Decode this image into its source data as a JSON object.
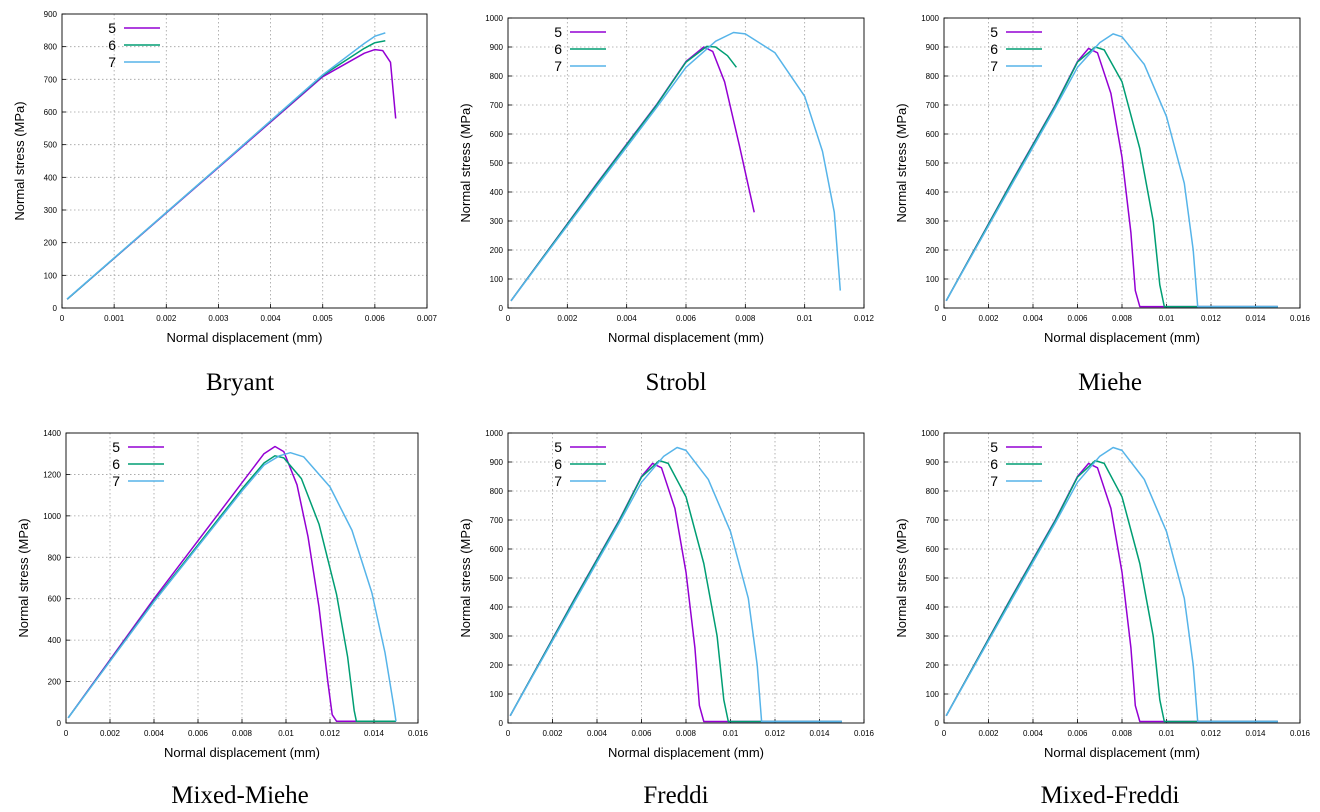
{
  "figure": {
    "legend_position": "top-left",
    "grid": true,
    "series_colors": {
      "5": "#9400D3",
      "6": "#009E73",
      "7": "#56B4E9"
    }
  },
  "chart_data": [
    {
      "type": "line",
      "caption": "Bryant",
      "xlabel": "Normal displacement (mm)",
      "ylabel": "Normal stress (MPa)",
      "xlim": [
        0,
        0.007
      ],
      "ylim": [
        0,
        900
      ],
      "xticks": [
        "0",
        "0.001",
        "0.002",
        "0.003",
        "0.004",
        "0.005",
        "0.006",
        "0.007"
      ],
      "yticks": [
        "0",
        "100",
        "200",
        "300",
        "400",
        "500",
        "600",
        "700",
        "800",
        "900"
      ],
      "series": [
        {
          "name": "5",
          "points": [
            [
              0.0001,
              27
            ],
            [
              0.003,
              430
            ],
            [
              0.005,
              708
            ],
            [
              0.0058,
              780
            ],
            [
              0.006,
              791
            ],
            [
              0.00615,
              788
            ],
            [
              0.0063,
              752
            ],
            [
              0.0064,
              580
            ]
          ]
        },
        {
          "name": "6",
          "points": [
            [
              0.0001,
              27
            ],
            [
              0.003,
              432
            ],
            [
              0.005,
              712
            ],
            [
              0.0058,
              795
            ],
            [
              0.006,
              812
            ],
            [
              0.0062,
              818
            ]
          ]
        },
        {
          "name": "7",
          "points": [
            [
              0.0001,
              28
            ],
            [
              0.003,
              432
            ],
            [
              0.005,
              714
            ],
            [
              0.0058,
              810
            ],
            [
              0.006,
              832
            ],
            [
              0.0062,
              842
            ]
          ]
        }
      ]
    },
    {
      "type": "line",
      "caption": "Strobl",
      "xlabel": "Normal displacement (mm)",
      "ylabel": "Normal stress (MPa)",
      "xlim": [
        0,
        0.012
      ],
      "ylim": [
        0,
        1000
      ],
      "xticks": [
        "0",
        "0.002",
        "0.004",
        "0.006",
        "0.008",
        "0.01",
        "0.012"
      ],
      "yticks": [
        "0",
        "100",
        "200",
        "300",
        "400",
        "500",
        "600",
        "700",
        "800",
        "900",
        "1000"
      ],
      "series": [
        {
          "name": "5",
          "points": [
            [
              0.0001,
              25
            ],
            [
              0.003,
              430
            ],
            [
              0.005,
              700
            ],
            [
              0.006,
              850
            ],
            [
              0.0066,
              900
            ],
            [
              0.0069,
              885
            ],
            [
              0.0073,
              780
            ],
            [
              0.0078,
              560
            ],
            [
              0.0083,
              330
            ]
          ]
        },
        {
          "name": "6",
          "points": [
            [
              0.0001,
              25
            ],
            [
              0.003,
              428
            ],
            [
              0.005,
              698
            ],
            [
              0.006,
              848
            ],
            [
              0.0067,
              902
            ],
            [
              0.007,
              900
            ],
            [
              0.0074,
              870
            ],
            [
              0.0077,
              830
            ]
          ]
        },
        {
          "name": "7",
          "points": [
            [
              0.0001,
              25
            ],
            [
              0.003,
              420
            ],
            [
              0.005,
              690
            ],
            [
              0.006,
              830
            ],
            [
              0.007,
              920
            ],
            [
              0.0076,
              950
            ],
            [
              0.008,
              945
            ],
            [
              0.009,
              880
            ],
            [
              0.01,
              730
            ],
            [
              0.0106,
              540
            ],
            [
              0.011,
              330
            ],
            [
              0.0112,
              60
            ]
          ]
        }
      ]
    },
    {
      "type": "line",
      "caption": "Miehe",
      "xlabel": "Normal displacement (mm)",
      "ylabel": "Normal stress (MPa)",
      "xlim": [
        0,
        0.016
      ],
      "ylim": [
        0,
        1000
      ],
      "xticks": [
        "0",
        "0.002",
        "0.004",
        "0.006",
        "0.008",
        "0.01",
        "0.012",
        "0.014",
        "0.016"
      ],
      "yticks": [
        "0",
        "100",
        "200",
        "300",
        "400",
        "500",
        "600",
        "700",
        "800",
        "900",
        "1000"
      ],
      "series": [
        {
          "name": "5",
          "points": [
            [
              0.0001,
              25
            ],
            [
              0.003,
              430
            ],
            [
              0.005,
              700
            ],
            [
              0.006,
              850
            ],
            [
              0.0065,
              895
            ],
            [
              0.0069,
              880
            ],
            [
              0.0075,
              740
            ],
            [
              0.008,
              520
            ],
            [
              0.0084,
              260
            ],
            [
              0.0086,
              60
            ],
            [
              0.0088,
              5
            ],
            [
              0.015,
              5
            ]
          ]
        },
        {
          "name": "6",
          "points": [
            [
              0.0001,
              25
            ],
            [
              0.003,
              428
            ],
            [
              0.005,
              698
            ],
            [
              0.006,
              848
            ],
            [
              0.0068,
              900
            ],
            [
              0.0072,
              890
            ],
            [
              0.008,
              780
            ],
            [
              0.0088,
              550
            ],
            [
              0.0094,
              300
            ],
            [
              0.0097,
              80
            ],
            [
              0.0099,
              5
            ],
            [
              0.015,
              5
            ]
          ]
        },
        {
          "name": "7",
          "points": [
            [
              0.0001,
              25
            ],
            [
              0.003,
              420
            ],
            [
              0.005,
              690
            ],
            [
              0.006,
              830
            ],
            [
              0.007,
              915
            ],
            [
              0.0076,
              945
            ],
            [
              0.008,
              935
            ],
            [
              0.009,
              840
            ],
            [
              0.01,
              660
            ],
            [
              0.0108,
              430
            ],
            [
              0.0112,
              200
            ],
            [
              0.0114,
              5
            ],
            [
              0.015,
              5
            ]
          ]
        }
      ]
    },
    {
      "type": "line",
      "caption": "Mixed-Miehe",
      "xlabel": "Normal displacement (mm)",
      "ylabel": "Normal stress (MPa)",
      "xlim": [
        0,
        0.016
      ],
      "ylim": [
        0,
        1400
      ],
      "xticks": [
        "0",
        "0.002",
        "0.004",
        "0.006",
        "0.008",
        "0.01",
        "0.012",
        "0.014",
        "0.016"
      ],
      "yticks": [
        "0",
        "200",
        "400",
        "600",
        "800",
        "1000",
        "1200",
        "1400"
      ],
      "series": [
        {
          "name": "5",
          "points": [
            [
              0.0001,
              25
            ],
            [
              0.004,
              600
            ],
            [
              0.008,
              1160
            ],
            [
              0.009,
              1300
            ],
            [
              0.0095,
              1335
            ],
            [
              0.0099,
              1310
            ],
            [
              0.0105,
              1150
            ],
            [
              0.011,
              900
            ],
            [
              0.0115,
              560
            ],
            [
              0.0119,
              200
            ],
            [
              0.0121,
              40
            ],
            [
              0.0123,
              8
            ],
            [
              0.015,
              8
            ]
          ]
        },
        {
          "name": "6",
          "points": [
            [
              0.0001,
              25
            ],
            [
              0.004,
              590
            ],
            [
              0.008,
              1130
            ],
            [
              0.009,
              1255
            ],
            [
              0.0095,
              1290
            ],
            [
              0.0099,
              1280
            ],
            [
              0.0107,
              1180
            ],
            [
              0.0115,
              960
            ],
            [
              0.0123,
              620
            ],
            [
              0.0128,
              320
            ],
            [
              0.0131,
              60
            ],
            [
              0.0132,
              8
            ],
            [
              0.015,
              8
            ]
          ]
        },
        {
          "name": "7",
          "points": [
            [
              0.0001,
              25
            ],
            [
              0.004,
              585
            ],
            [
              0.008,
              1120
            ],
            [
              0.009,
              1245
            ],
            [
              0.0097,
              1290
            ],
            [
              0.0102,
              1305
            ],
            [
              0.0108,
              1285
            ],
            [
              0.012,
              1140
            ],
            [
              0.013,
              930
            ],
            [
              0.0139,
              630
            ],
            [
              0.0145,
              340
            ],
            [
              0.0149,
              80
            ],
            [
              0.015,
              8
            ]
          ]
        }
      ]
    },
    {
      "type": "line",
      "caption": "Freddi",
      "xlabel": "Normal displacement (mm)",
      "ylabel": "Normal stress (MPa)",
      "xlim": [
        0,
        0.016
      ],
      "ylim": [
        0,
        1000
      ],
      "xticks": [
        "0",
        "0.002",
        "0.004",
        "0.006",
        "0.008",
        "0.01",
        "0.012",
        "0.014",
        "0.016"
      ],
      "yticks": [
        "0",
        "100",
        "200",
        "300",
        "400",
        "500",
        "600",
        "700",
        "800",
        "900",
        "1000"
      ],
      "series": [
        {
          "name": "5",
          "points": [
            [
              0.0001,
              25
            ],
            [
              0.003,
              430
            ],
            [
              0.005,
              700
            ],
            [
              0.006,
              850
            ],
            [
              0.0065,
              895
            ],
            [
              0.0069,
              880
            ],
            [
              0.0075,
              740
            ],
            [
              0.008,
              520
            ],
            [
              0.0084,
              260
            ],
            [
              0.0086,
              60
            ],
            [
              0.0088,
              5
            ],
            [
              0.015,
              5
            ]
          ]
        },
        {
          "name": "6",
          "points": [
            [
              0.0001,
              25
            ],
            [
              0.003,
              428
            ],
            [
              0.005,
              698
            ],
            [
              0.006,
              848
            ],
            [
              0.0068,
              905
            ],
            [
              0.0072,
              895
            ],
            [
              0.008,
              780
            ],
            [
              0.0088,
              550
            ],
            [
              0.0094,
              300
            ],
            [
              0.0097,
              80
            ],
            [
              0.0099,
              5
            ],
            [
              0.015,
              5
            ]
          ]
        },
        {
          "name": "7",
          "points": [
            [
              0.0001,
              25
            ],
            [
              0.003,
              420
            ],
            [
              0.005,
              690
            ],
            [
              0.006,
              830
            ],
            [
              0.007,
              920
            ],
            [
              0.0076,
              950
            ],
            [
              0.008,
              940
            ],
            [
              0.009,
              840
            ],
            [
              0.01,
              660
            ],
            [
              0.0108,
              430
            ],
            [
              0.0112,
              200
            ],
            [
              0.0114,
              5
            ],
            [
              0.015,
              5
            ]
          ]
        }
      ]
    },
    {
      "type": "line",
      "caption": "Mixed-Freddi",
      "xlabel": "Normal displacement (mm)",
      "ylabel": "Normal stress (MPa)",
      "xlim": [
        0,
        0.016
      ],
      "ylim": [
        0,
        1000
      ],
      "xticks": [
        "0",
        "0.002",
        "0.004",
        "0.006",
        "0.008",
        "0.01",
        "0.012",
        "0.014",
        "0.016"
      ],
      "yticks": [
        "0",
        "100",
        "200",
        "300",
        "400",
        "500",
        "600",
        "700",
        "800",
        "900",
        "1000"
      ],
      "series": [
        {
          "name": "5",
          "points": [
            [
              0.0001,
              25
            ],
            [
              0.003,
              430
            ],
            [
              0.005,
              700
            ],
            [
              0.006,
              850
            ],
            [
              0.0065,
              895
            ],
            [
              0.0069,
              880
            ],
            [
              0.0075,
              740
            ],
            [
              0.008,
              520
            ],
            [
              0.0084,
              260
            ],
            [
              0.0086,
              60
            ],
            [
              0.0088,
              5
            ],
            [
              0.015,
              5
            ]
          ]
        },
        {
          "name": "6",
          "points": [
            [
              0.0001,
              25
            ],
            [
              0.003,
              428
            ],
            [
              0.005,
              698
            ],
            [
              0.006,
              848
            ],
            [
              0.0068,
              905
            ],
            [
              0.0072,
              895
            ],
            [
              0.008,
              780
            ],
            [
              0.0088,
              550
            ],
            [
              0.0094,
              300
            ],
            [
              0.0097,
              80
            ],
            [
              0.0099,
              5
            ],
            [
              0.015,
              5
            ]
          ]
        },
        {
          "name": "7",
          "points": [
            [
              0.0001,
              25
            ],
            [
              0.003,
              420
            ],
            [
              0.005,
              690
            ],
            [
              0.006,
              830
            ],
            [
              0.007,
              920
            ],
            [
              0.0076,
              950
            ],
            [
              0.008,
              940
            ],
            [
              0.009,
              840
            ],
            [
              0.01,
              660
            ],
            [
              0.0108,
              430
            ],
            [
              0.0112,
              200
            ],
            [
              0.0114,
              5
            ],
            [
              0.015,
              5
            ]
          ]
        }
      ]
    }
  ]
}
